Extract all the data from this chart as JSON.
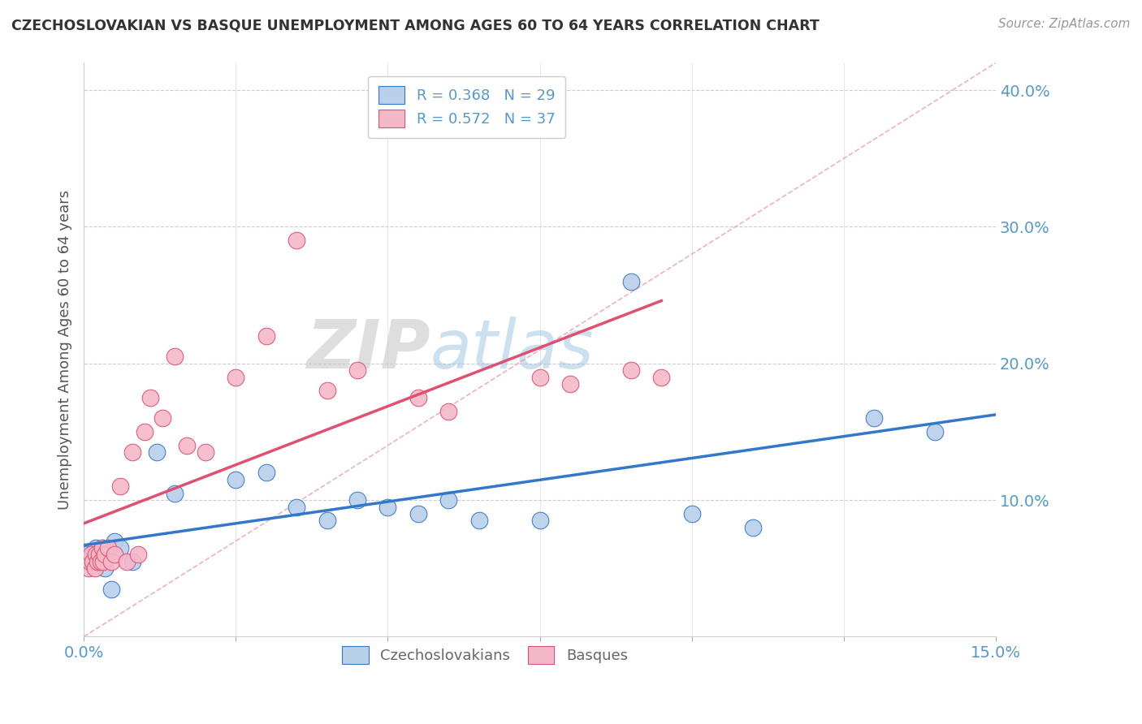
{
  "title": "CZECHOSLOVAKIAN VS BASQUE UNEMPLOYMENT AMONG AGES 60 TO 64 YEARS CORRELATION CHART",
  "source": "Source: ZipAtlas.com",
  "ylabel": "Unemployment Among Ages 60 to 64 years",
  "xlim": [
    0.0,
    15.0
  ],
  "ylim": [
    0.0,
    42.0
  ],
  "yticks": [
    10.0,
    20.0,
    30.0,
    40.0
  ],
  "ytick_labels": [
    "10.0%",
    "20.0%",
    "30.0%",
    "40.0%"
  ],
  "blue_color": "#b8d0ea",
  "pink_color": "#f5b8c8",
  "blue_line_color": "#3377cc",
  "pink_line_color": "#e05070",
  "ref_line_color": "#e8a0b0",
  "blue_x": [
    0.05,
    0.1,
    0.15,
    0.2,
    0.25,
    0.3,
    0.35,
    0.4,
    0.5,
    0.6,
    0.8,
    1.2,
    1.5,
    2.5,
    3.0,
    3.5,
    4.0,
    4.5,
    5.0,
    5.5,
    6.0,
    6.5,
    7.5,
    9.0,
    10.0,
    11.0,
    13.0,
    14.0,
    0.45
  ],
  "blue_y": [
    6.0,
    5.5,
    6.0,
    6.5,
    6.0,
    6.5,
    5.0,
    6.5,
    7.0,
    6.5,
    5.5,
    13.5,
    10.5,
    11.5,
    12.0,
    9.5,
    8.5,
    10.0,
    9.5,
    9.0,
    10.0,
    8.5,
    8.5,
    26.0,
    9.0,
    8.0,
    16.0,
    15.0,
    3.5
  ],
  "pink_x": [
    0.05,
    0.08,
    0.1,
    0.12,
    0.15,
    0.18,
    0.2,
    0.22,
    0.25,
    0.28,
    0.3,
    0.32,
    0.35,
    0.4,
    0.45,
    0.5,
    0.6,
    0.7,
    0.8,
    0.9,
    1.0,
    1.1,
    1.3,
    1.5,
    1.7,
    2.0,
    2.5,
    3.0,
    3.5,
    4.0,
    4.5,
    5.5,
    6.0,
    7.5,
    8.0,
    9.0,
    9.5
  ],
  "pink_y": [
    5.5,
    5.0,
    5.5,
    6.0,
    5.5,
    5.0,
    6.0,
    5.5,
    6.0,
    5.5,
    6.5,
    5.5,
    6.0,
    6.5,
    5.5,
    6.0,
    11.0,
    5.5,
    13.5,
    6.0,
    15.0,
    17.5,
    16.0,
    20.5,
    14.0,
    13.5,
    19.0,
    22.0,
    29.0,
    18.0,
    19.5,
    17.5,
    16.5,
    19.0,
    18.5,
    19.5,
    19.0
  ],
  "background_color": "#ffffff",
  "grid_color": "#cccccc",
  "grid_style": "--",
  "title_color": "#333333",
  "tick_label_color": "#5599cc",
  "ylabel_color": "#555555"
}
